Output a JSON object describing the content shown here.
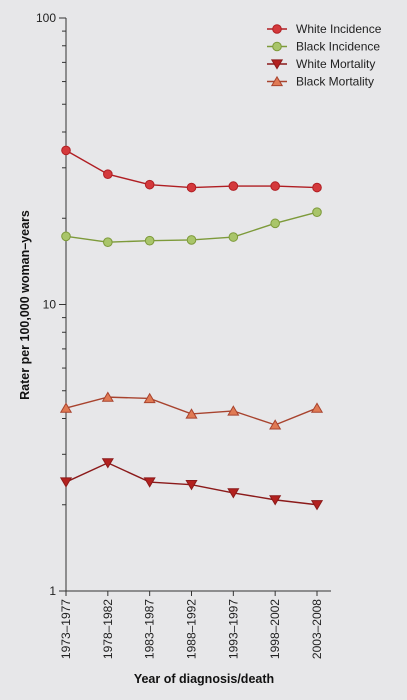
{
  "chart_data": {
    "type": "line",
    "yscale": "log",
    "ylim": [
      1,
      100
    ],
    "y_ticks": [
      1,
      10,
      100
    ],
    "y_tick_labels": [
      "1",
      "10",
      "100"
    ],
    "categories": [
      "1973–1977",
      "1978–1982",
      "1983–1987",
      "1988–1992",
      "1993–1997",
      "1998–2002",
      "2003–2008"
    ],
    "xlabel": "Year of diagnosis/death",
    "ylabel": "Rater per 100,000 woman–years",
    "legend_position": "top-right",
    "grid": false,
    "series": [
      {
        "name": "White Incidence",
        "marker": "circle",
        "color": "#b01e23",
        "fill": "#d4393c",
        "values": [
          34.5,
          28.5,
          26.2,
          25.6,
          25.9,
          25.9,
          25.6
        ]
      },
      {
        "name": "Black Incidence",
        "marker": "circle",
        "color": "#7d9a3a",
        "fill": "#a9c56a",
        "values": [
          17.3,
          16.5,
          16.7,
          16.8,
          17.2,
          19.2,
          21.0
        ]
      },
      {
        "name": "White Mortality",
        "marker": "triangle-down",
        "color": "#8b1a1a",
        "fill": "#b3211f",
        "values": [
          2.4,
          2.8,
          2.4,
          2.35,
          2.2,
          2.08,
          2.0
        ]
      },
      {
        "name": "Black Mortality",
        "marker": "triangle-up",
        "color": "#a8432e",
        "fill": "#e07a54",
        "values": [
          4.35,
          4.75,
          4.7,
          4.15,
          4.25,
          3.8,
          4.35
        ]
      }
    ]
  }
}
